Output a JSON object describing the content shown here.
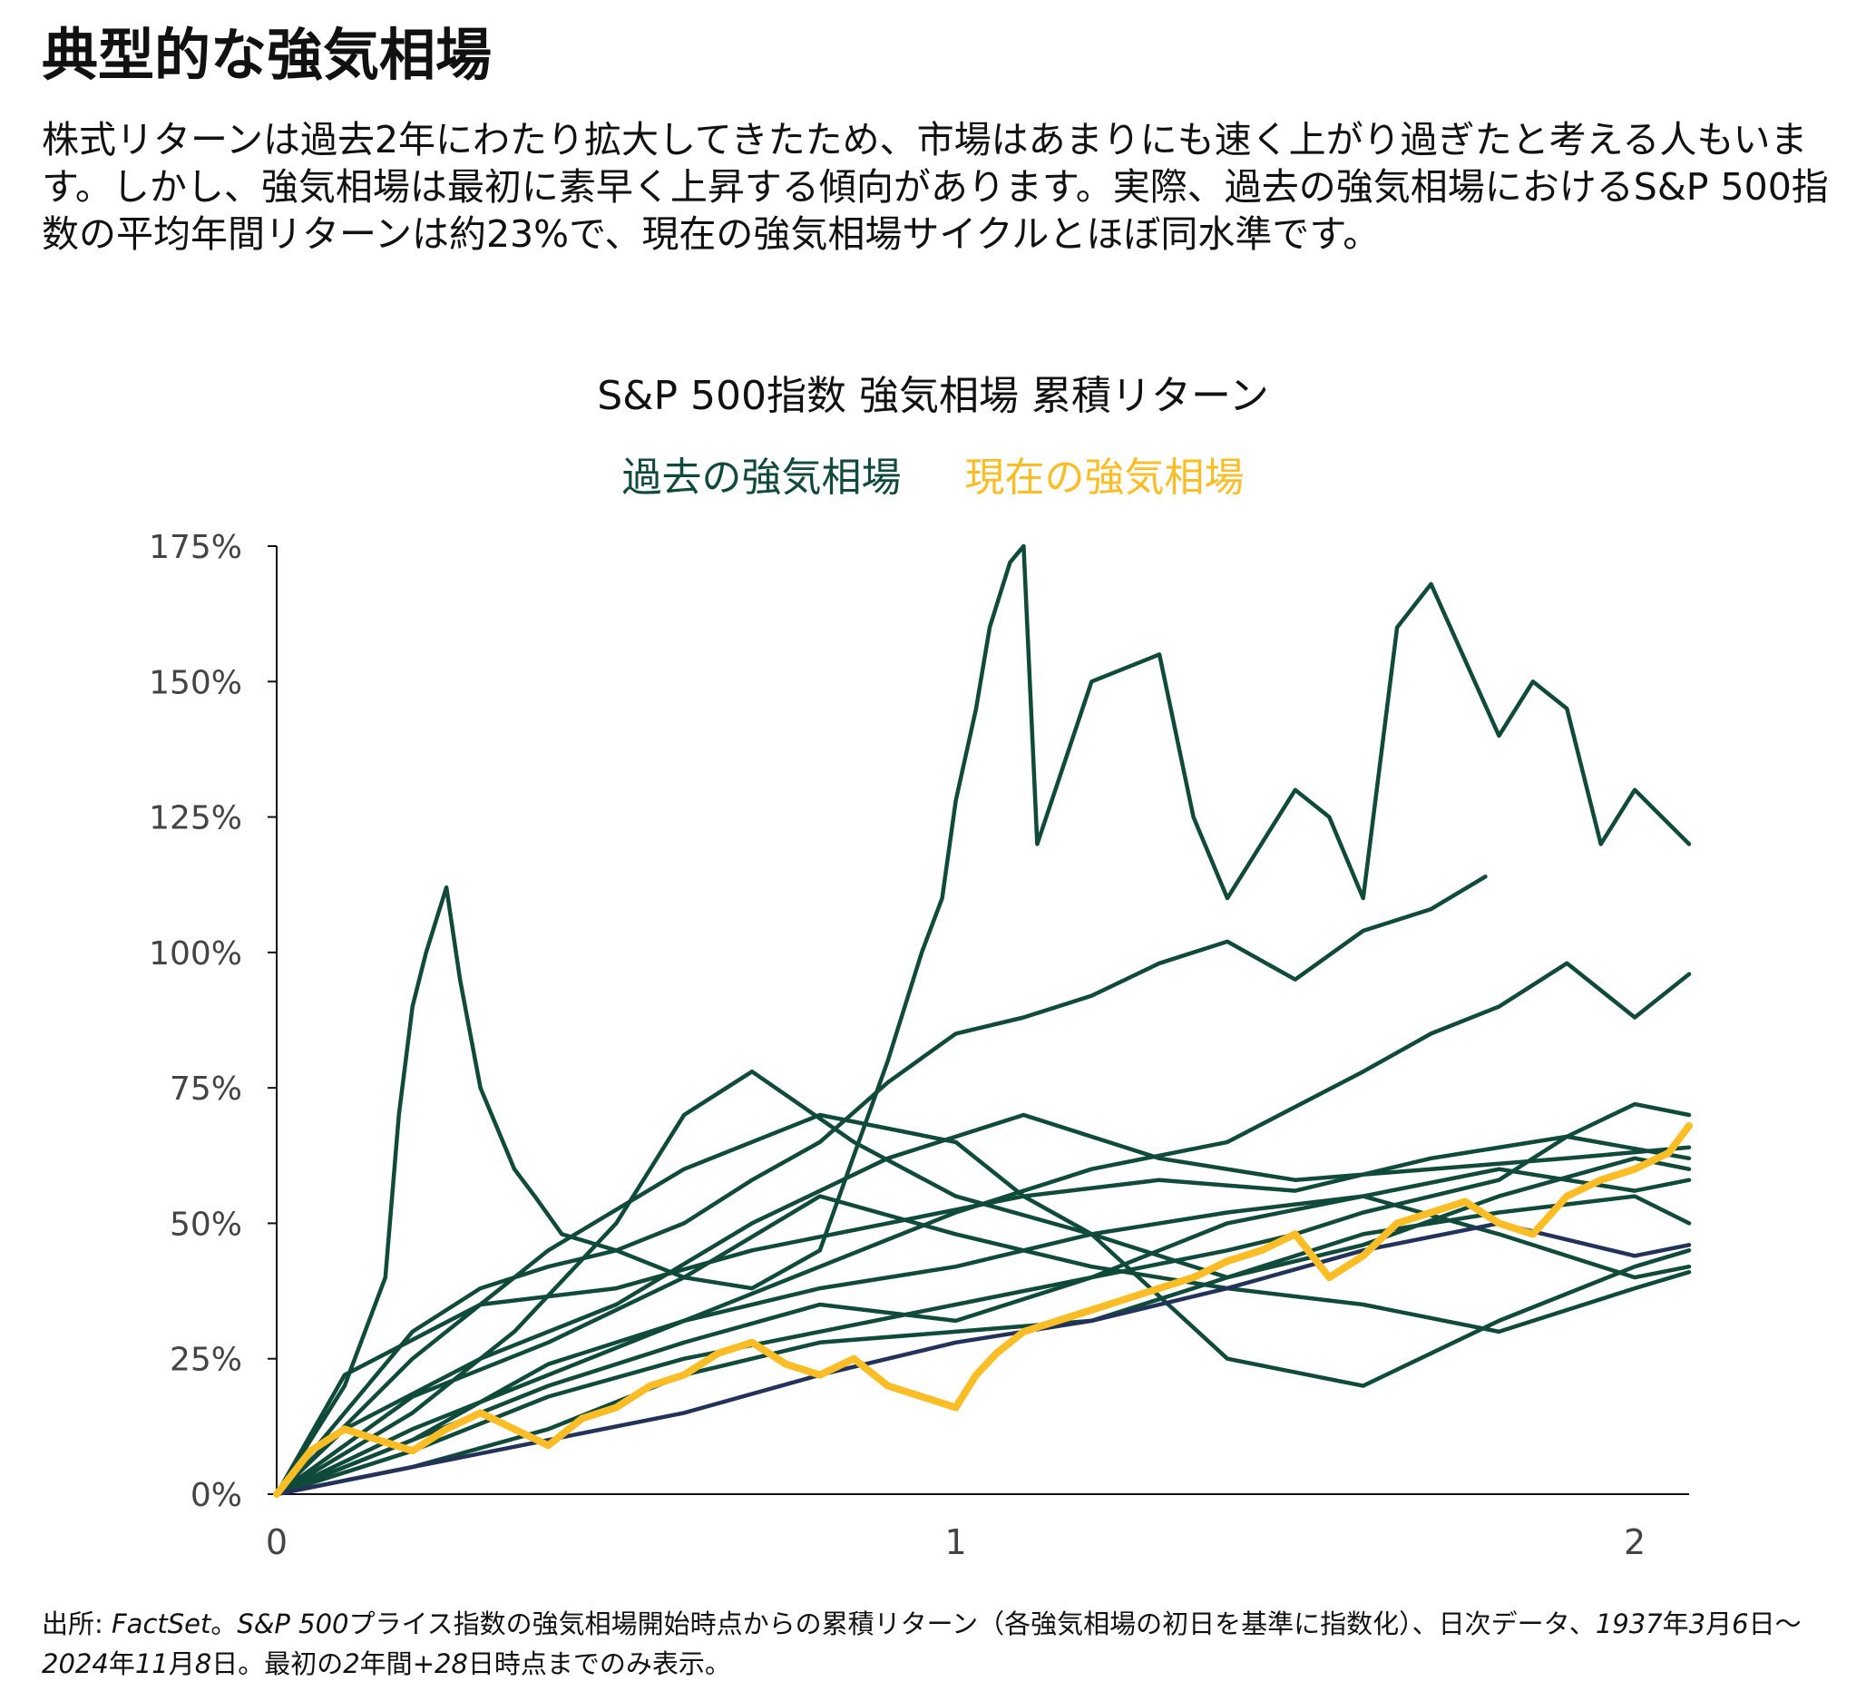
{
  "headline": "典型的な強気相場",
  "body": "株式リターンは過去2年にわたり拡大してきたため、市場はあまりにも速く上がり過ぎたと考える人もいます。しかし、強気相場は最初に素早く上昇する傾向があります。実際、過去の強気相場におけるS&P 500指数の平均年間リターンは約23%で、現在の強気相場サイクルとほぼ同水準です。",
  "source": {
    "prefix": "出所: ",
    "factset": "FactSet",
    "sep": "。",
    "sp500": "S&P 500",
    "rest1": "プライス指数の強気相場開始時点からの累積リターン（各強気相場の初日を基準に指数化）、日次データ、",
    "start": "1937",
    "y1": "年",
    "m3": "3",
    "mo1": "月",
    "d6": "6",
    "day1": "日〜",
    "end": "2024",
    "y2": "年",
    "m11": "11",
    "mo2": "月",
    "d8": "8",
    "day2": "日。最初の",
    "two": "2",
    "yr": "年間",
    "plus28": "+28",
    "rest2": "日時点までのみ表示。"
  },
  "colors": {
    "past": "#0f4a3a",
    "past_alt": "#22325a",
    "current": "#fbbd25",
    "axis": "#111111",
    "tick_text": "#444444"
  },
  "chart_data": {
    "type": "line",
    "title": "S&P 500指数 強気相場 累積リターン",
    "legend": [
      {
        "name": "過去の強気相場",
        "color": "#0f4a3a"
      },
      {
        "name": "現在の強気相場",
        "color": "#fbbd25"
      }
    ],
    "legend_position": "top-center",
    "xlim": [
      0,
      2.08
    ],
    "ylim": [
      0,
      175
    ],
    "x_ticks": [
      0,
      1,
      2
    ],
    "x_tick_labels": [
      "0",
      "1",
      "2"
    ],
    "y_ticks": [
      0,
      25,
      50,
      75,
      100,
      125,
      150,
      175
    ],
    "y_tick_labels": [
      "0%",
      "25%",
      "50%",
      "75%",
      "100%",
      "125%",
      "150%",
      "175%"
    ],
    "grid": false,
    "series": [
      {
        "group": "past",
        "x": [
          0,
          0.1,
          0.16,
          0.18,
          0.2,
          0.22,
          0.25,
          0.27,
          0.3,
          0.35,
          0.38,
          0.42,
          0.5,
          0.6,
          0.7,
          0.8,
          0.9,
          0.95,
          0.98,
          1.0,
          1.03,
          1.05,
          1.08,
          1.1,
          1.12,
          1.2,
          1.3,
          1.35,
          1.4,
          1.45,
          1.5,
          1.55,
          1.6,
          1.65,
          1.7,
          1.8,
          1.85,
          1.9,
          1.95,
          2.0,
          2.08
        ],
        "y": [
          0,
          20,
          40,
          70,
          90,
          100,
          112,
          95,
          75,
          60,
          55,
          48,
          45,
          40,
          38,
          45,
          80,
          100,
          110,
          128,
          145,
          160,
          172,
          175,
          120,
          150,
          155,
          125,
          110,
          120,
          130,
          125,
          110,
          160,
          168,
          140,
          150,
          145,
          120,
          130,
          120
        ]
      },
      {
        "group": "past",
        "x": [
          0,
          0.1,
          0.2,
          0.3,
          0.4,
          0.5,
          0.6,
          0.7,
          0.8,
          0.9,
          1.0,
          1.1,
          1.2,
          1.3,
          1.4,
          1.5,
          1.6,
          1.7,
          1.78
        ],
        "y": [
          0,
          15,
          30,
          38,
          42,
          45,
          50,
          58,
          65,
          76,
          85,
          88,
          92,
          98,
          102,
          95,
          104,
          108,
          114
        ]
      },
      {
        "group": "past",
        "x": [
          0,
          0.2,
          0.4,
          0.6,
          0.8,
          1.0,
          1.2,
          1.4,
          1.6,
          1.7,
          1.8,
          1.9,
          2.0,
          2.08
        ],
        "y": [
          0,
          12,
          22,
          32,
          42,
          52,
          60,
          65,
          78,
          85,
          90,
          98,
          88,
          96
        ]
      },
      {
        "group": "past",
        "x": [
          0,
          0.1,
          0.3,
          0.5,
          0.7,
          0.9,
          1.1,
          1.3,
          1.5,
          1.7,
          1.9,
          2.08
        ],
        "y": [
          0,
          12,
          25,
          35,
          50,
          62,
          70,
          62,
          58,
          60,
          62,
          64
        ]
      },
      {
        "group": "past",
        "x": [
          0,
          0.2,
          0.4,
          0.6,
          0.8,
          1.0,
          1.1,
          1.2,
          1.4,
          1.6,
          1.8,
          2.0,
          2.08
        ],
        "y": [
          0,
          25,
          45,
          60,
          70,
          65,
          55,
          48,
          40,
          46,
          55,
          62,
          60
        ]
      },
      {
        "group": "past",
        "x": [
          0,
          0.2,
          0.35,
          0.5,
          0.6,
          0.7,
          0.85,
          1.0,
          1.2,
          1.4,
          1.6,
          1.8,
          2.0,
          2.08
        ],
        "y": [
          0,
          15,
          30,
          50,
          70,
          78,
          65,
          55,
          48,
          25,
          20,
          32,
          42,
          45
        ]
      },
      {
        "group": "past",
        "x": [
          0,
          0.2,
          0.4,
          0.6,
          0.8,
          1.0,
          1.2,
          1.4,
          1.5,
          1.6,
          1.8,
          1.9,
          2.0,
          2.08
        ],
        "y": [
          0,
          8,
          18,
          25,
          30,
          35,
          40,
          45,
          48,
          52,
          58,
          66,
          72,
          70
        ]
      },
      {
        "group": "past",
        "x": [
          0,
          0.2,
          0.4,
          0.6,
          0.8,
          1.0,
          1.2,
          1.4,
          1.6,
          1.8,
          2.0,
          2.08
        ],
        "y": [
          0,
          10,
          20,
          28,
          35,
          32,
          40,
          50,
          55,
          48,
          40,
          42
        ]
      },
      {
        "group": "past",
        "x": [
          0,
          0.2,
          0.4,
          0.6,
          0.8,
          1.0,
          1.2,
          1.4,
          1.6,
          1.8,
          2.0,
          2.08
        ],
        "y": [
          0,
          18,
          28,
          40,
          55,
          48,
          42,
          38,
          35,
          30,
          38,
          41
        ]
      },
      {
        "group": "past",
        "x": [
          0,
          0.2,
          0.4,
          0.6,
          0.8,
          1.0,
          1.2,
          1.4,
          1.6,
          1.8,
          2.0,
          2.08
        ],
        "y": [
          0,
          10,
          24,
          32,
          38,
          42,
          48,
          52,
          55,
          60,
          56,
          58
        ]
      },
      {
        "group": "past",
        "x": [
          0,
          0.2,
          0.4,
          0.6,
          0.8,
          1.0,
          1.2,
          1.4,
          1.6,
          1.8,
          2.0,
          2.08
        ],
        "y": [
          0,
          5,
          12,
          22,
          28,
          30,
          32,
          40,
          48,
          52,
          55,
          50
        ]
      },
      {
        "group": "past",
        "x": [
          0,
          0.1,
          0.3,
          0.5,
          0.7,
          0.9,
          1.1,
          1.3,
          1.5,
          1.7,
          1.9,
          2.08
        ],
        "y": [
          0,
          22,
          35,
          38,
          45,
          50,
          55,
          58,
          56,
          62,
          66,
          62
        ]
      },
      {
        "group": "past_alt",
        "x": [
          0,
          0.2,
          0.4,
          0.6,
          0.8,
          1.0,
          1.2,
          1.4,
          1.6,
          1.8,
          2.0,
          2.08
        ],
        "y": [
          0,
          5,
          10,
          15,
          22,
          28,
          32,
          38,
          45,
          50,
          44,
          46
        ]
      },
      {
        "group": "current",
        "x": [
          0,
          0.05,
          0.1,
          0.15,
          0.2,
          0.25,
          0.3,
          0.35,
          0.4,
          0.45,
          0.5,
          0.55,
          0.6,
          0.65,
          0.7,
          0.75,
          0.8,
          0.85,
          0.9,
          0.95,
          1.0,
          1.03,
          1.06,
          1.1,
          1.15,
          1.2,
          1.25,
          1.3,
          1.35,
          1.4,
          1.45,
          1.5,
          1.55,
          1.6,
          1.65,
          1.7,
          1.75,
          1.8,
          1.85,
          1.9,
          1.95,
          2.0,
          2.05,
          2.08
        ],
        "y": [
          0,
          8,
          12,
          10,
          8,
          12,
          15,
          12,
          9,
          14,
          16,
          20,
          22,
          26,
          28,
          24,
          22,
          25,
          20,
          18,
          16,
          22,
          26,
          30,
          32,
          34,
          36,
          38,
          40,
          43,
          45,
          48,
          40,
          44,
          50,
          52,
          54,
          50,
          48,
          55,
          58,
          60,
          63,
          68
        ]
      }
    ]
  }
}
